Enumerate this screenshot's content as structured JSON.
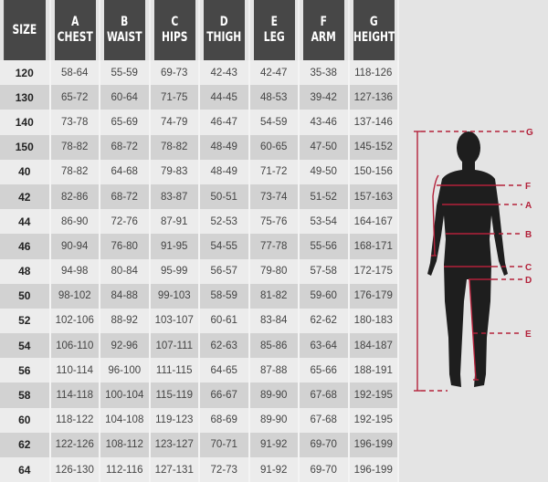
{
  "headers": [
    {
      "letter": "",
      "name": "SIZE"
    },
    {
      "letter": "A",
      "name": "CHEST"
    },
    {
      "letter": "B",
      "name": "WAIST"
    },
    {
      "letter": "C",
      "name": "HIPS"
    },
    {
      "letter": "D",
      "name": "THIGH"
    },
    {
      "letter": "E",
      "name": "LEG"
    },
    {
      "letter": "F",
      "name": "ARM"
    },
    {
      "letter": "G",
      "name": "HEIGHT"
    }
  ],
  "rows": [
    [
      "120",
      "58-64",
      "55-59",
      "69-73",
      "42-43",
      "42-47",
      "35-38",
      "118-126"
    ],
    [
      "130",
      "65-72",
      "60-64",
      "71-75",
      "44-45",
      "48-53",
      "39-42",
      "127-136"
    ],
    [
      "140",
      "73-78",
      "65-69",
      "74-79",
      "46-47",
      "54-59",
      "43-46",
      "137-146"
    ],
    [
      "150",
      "78-82",
      "68-72",
      "78-82",
      "48-49",
      "60-65",
      "47-50",
      "145-152"
    ],
    [
      "40",
      "78-82",
      "64-68",
      "79-83",
      "48-49",
      "71-72",
      "49-50",
      "150-156"
    ],
    [
      "42",
      "82-86",
      "68-72",
      "83-87",
      "50-51",
      "73-74",
      "51-52",
      "157-163"
    ],
    [
      "44",
      "86-90",
      "72-76",
      "87-91",
      "52-53",
      "75-76",
      "53-54",
      "164-167"
    ],
    [
      "46",
      "90-94",
      "76-80",
      "91-95",
      "54-55",
      "77-78",
      "55-56",
      "168-171"
    ],
    [
      "48",
      "94-98",
      "80-84",
      "95-99",
      "56-57",
      "79-80",
      "57-58",
      "172-175"
    ],
    [
      "50",
      "98-102",
      "84-88",
      "99-103",
      "58-59",
      "81-82",
      "59-60",
      "176-179"
    ],
    [
      "52",
      "102-106",
      "88-92",
      "103-107",
      "60-61",
      "83-84",
      "62-62",
      "180-183"
    ],
    [
      "54",
      "106-110",
      "92-96",
      "107-111",
      "62-63",
      "85-86",
      "63-64",
      "184-187"
    ],
    [
      "56",
      "110-114",
      "96-100",
      "111-115",
      "64-65",
      "87-88",
      "65-66",
      "188-191"
    ],
    [
      "58",
      "114-118",
      "100-104",
      "115-119",
      "66-67",
      "89-90",
      "67-68",
      "192-195"
    ],
    [
      "60",
      "118-122",
      "104-108",
      "119-123",
      "68-69",
      "89-90",
      "67-68",
      "192-195"
    ],
    [
      "62",
      "122-126",
      "108-112",
      "123-127",
      "70-71",
      "91-92",
      "69-70",
      "196-199"
    ],
    [
      "64",
      "126-130",
      "112-116",
      "127-131",
      "72-73",
      "91-92",
      "69-70",
      "196-199"
    ]
  ],
  "figure": {
    "labels": {
      "G": "G",
      "F": "F",
      "A": "A",
      "B": "B",
      "C": "C",
      "D": "D",
      "E": "E"
    },
    "accent_color": "#b3213a",
    "silhouette_color": "#1e1e1e"
  }
}
